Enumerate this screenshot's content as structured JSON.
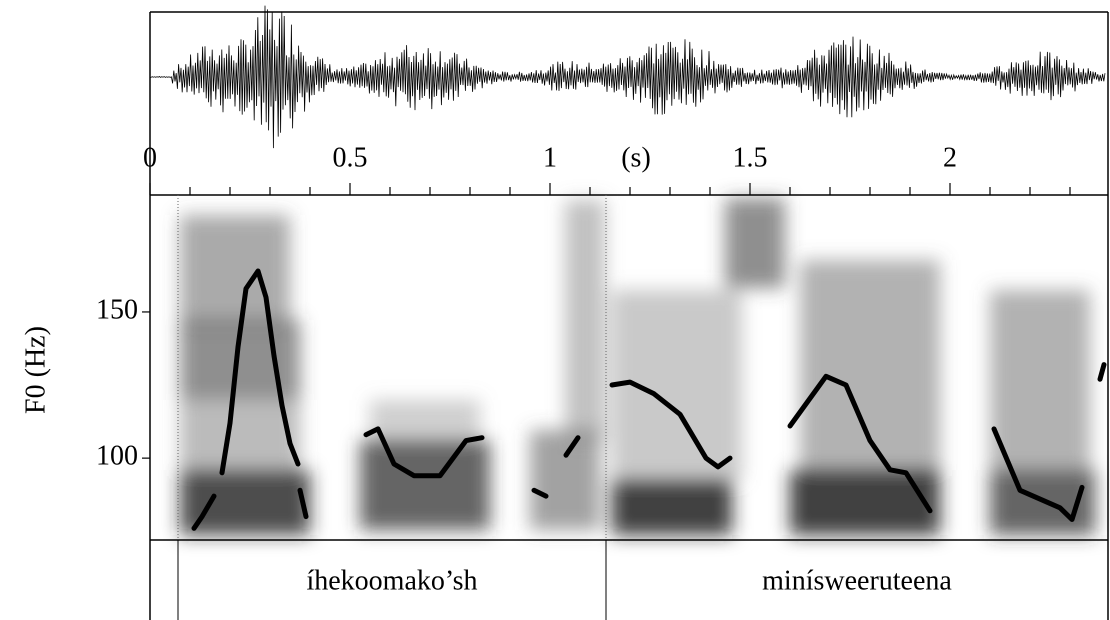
{
  "chart_data": {
    "type": "line",
    "xlabel": "(s)",
    "ylabel": "F0 (Hz)",
    "xlim": [
      0,
      2.395
    ],
    "xticks": [
      0,
      0.5,
      1,
      1.5,
      2
    ],
    "xminorticks": [
      0.1,
      0.2,
      0.3,
      0.4,
      0.6,
      0.7,
      0.8,
      0.9,
      1.1,
      1.2,
      1.3,
      1.4,
      1.6,
      1.7,
      1.8,
      1.9,
      2.1,
      2.2,
      2.3
    ],
    "ylim": [
      72,
      190
    ],
    "yticks": [
      100,
      150
    ],
    "x": [
      0.11,
      0.13,
      0.16,
      null,
      0.18,
      0.2,
      0.22,
      0.24,
      0.27,
      0.29,
      0.31,
      0.33,
      0.35,
      0.37,
      null,
      0.375,
      0.39,
      null,
      0.54,
      0.57,
      0.61,
      0.66,
      0.725,
      0.79,
      0.83,
      null,
      0.96,
      0.99,
      null,
      1.04,
      1.07,
      null,
      1.155,
      1.2,
      1.26,
      1.325,
      1.39,
      1.42,
      1.45,
      null,
      1.6,
      1.69,
      1.74,
      1.8,
      1.85,
      1.89,
      1.95,
      null,
      2.11,
      2.175,
      2.225,
      2.275,
      2.305,
      2.33,
      null,
      2.375,
      2.385
    ],
    "series": [
      {
        "color": "#000000",
        "values": [
          76,
          80,
          87,
          null,
          95,
          112,
          138,
          158,
          164,
          155,
          135,
          118,
          105,
          98,
          null,
          89,
          80,
          null,
          108,
          110,
          98,
          94,
          94,
          106,
          107,
          null,
          89,
          87,
          null,
          101,
          107,
          null,
          125,
          126,
          122,
          115,
          100,
          97,
          100,
          null,
          111,
          128,
          125,
          106,
          96,
          95,
          82,
          null,
          110,
          89,
          86,
          83,
          79,
          90,
          null,
          127,
          132
        ]
      }
    ]
  },
  "textgrid": {
    "boundaries": [
      0.07,
      1.14
    ],
    "labels": [
      "íhekoomako’sh",
      "minísweeruteena"
    ]
  }
}
